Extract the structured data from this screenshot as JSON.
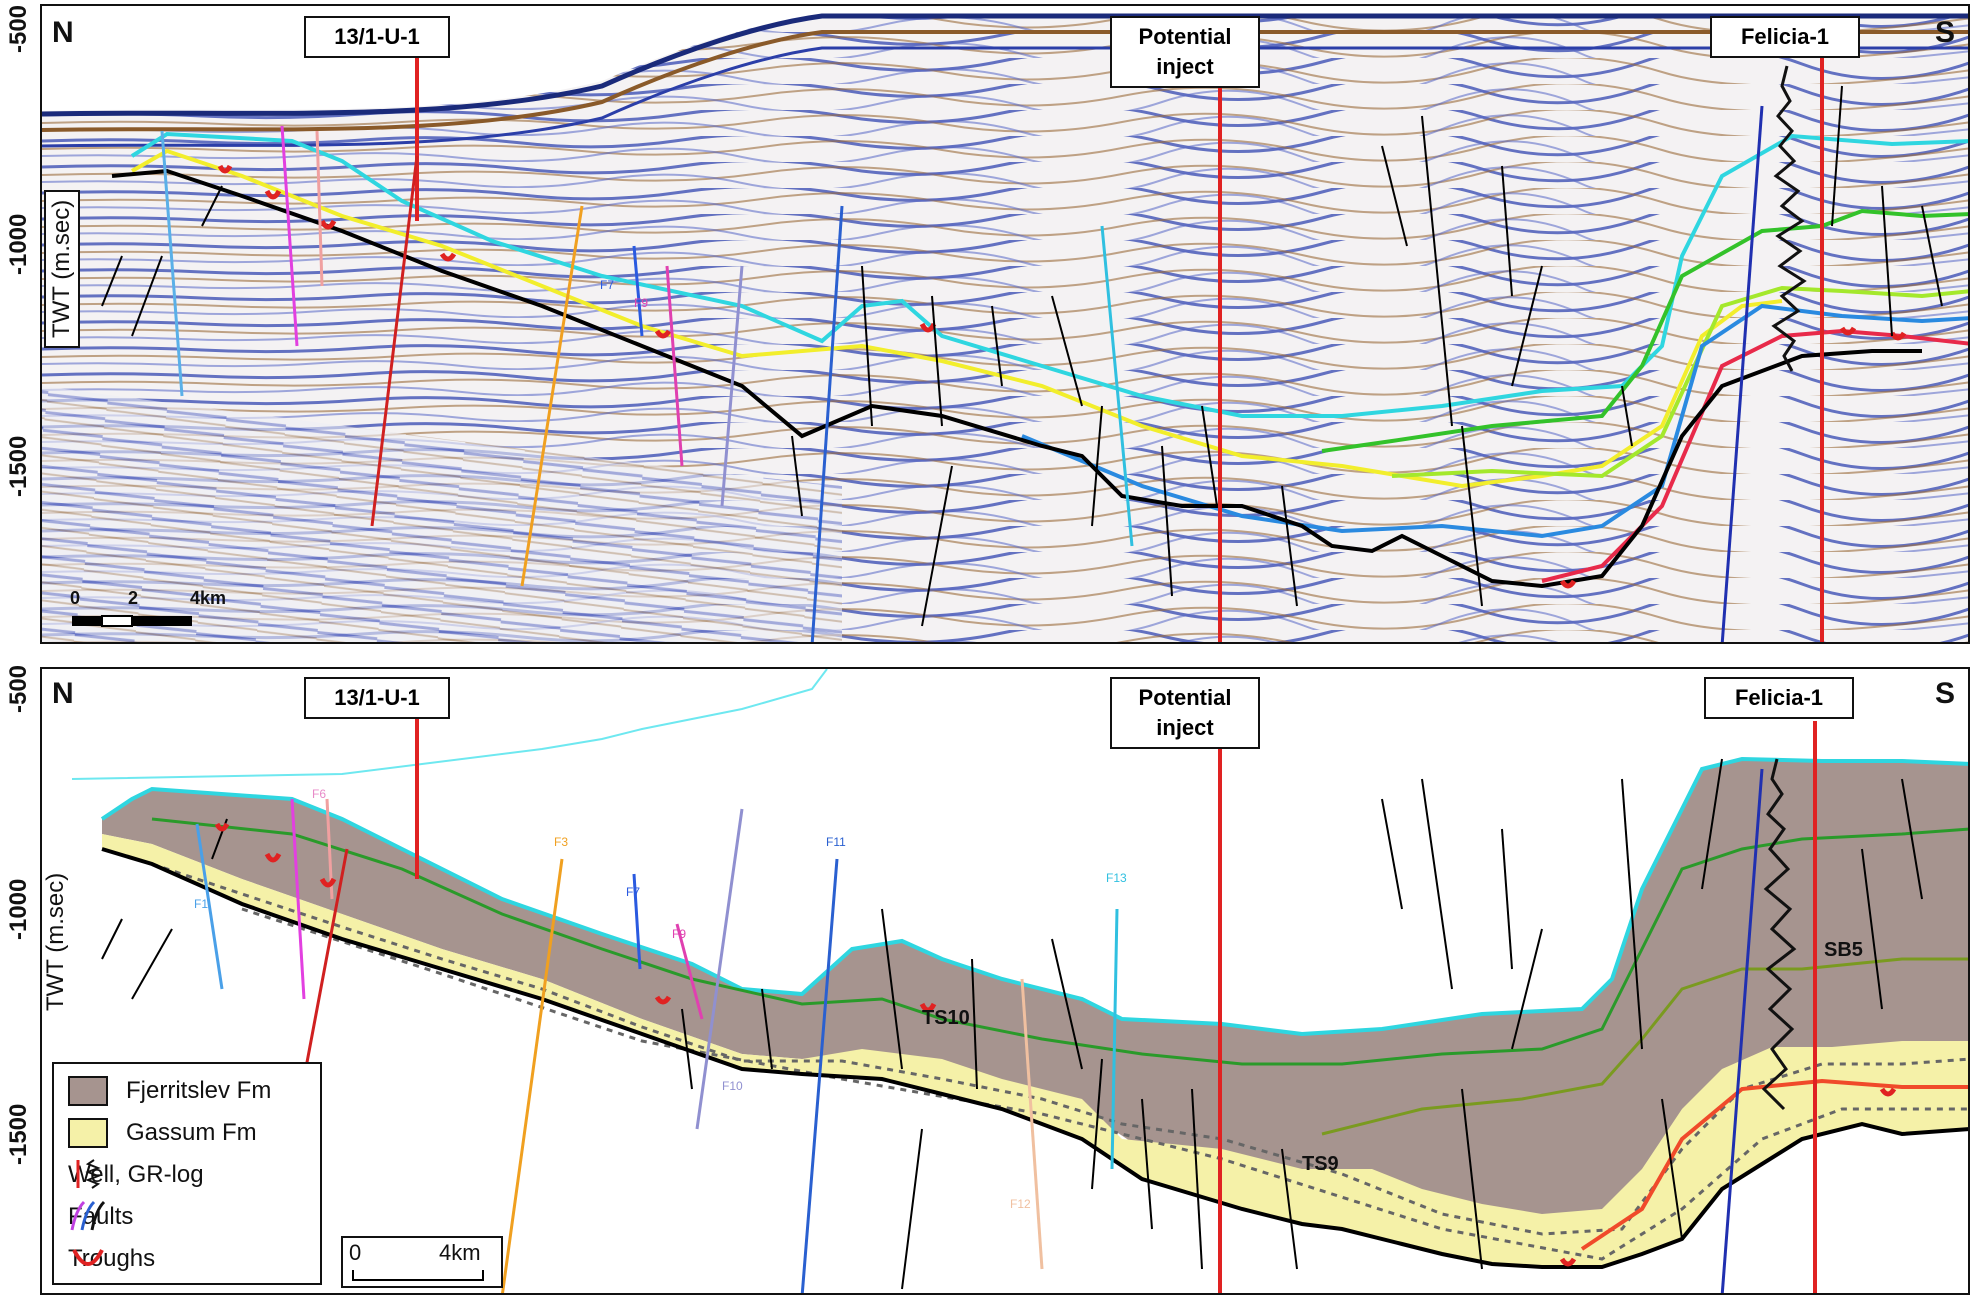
{
  "y_ticks": [
    "-500",
    "-1000",
    "-1500"
  ],
  "y_axis_label": "TWT (m.sec)",
  "direction": {
    "north": "N",
    "south": "S"
  },
  "wells": [
    {
      "name": "13/1-U-1"
    },
    {
      "name": "Potential inject"
    },
    {
      "name": "Felicia-1"
    }
  ],
  "fault_labels": [
    "F7",
    "F9",
    "F1",
    "F3",
    "F7",
    "F9",
    "F6",
    "F10",
    "F11",
    "F13",
    "F12"
  ],
  "horizon_labels": [
    "TS10",
    "TS9",
    "SB5"
  ],
  "legend": [
    {
      "label": "Fjerritslev Fm",
      "color": "#9a8a85"
    },
    {
      "label": "Gassum Fm",
      "color": "#f5f1a8"
    },
    {
      "label": "Well, GR-log",
      "icon": "well-gr-log-icon"
    },
    {
      "label": "Faults",
      "icon": "faults-icon"
    },
    {
      "label": "Troughs",
      "icon": "trough-icon"
    }
  ],
  "scale_top": {
    "ticks": [
      "0",
      "2",
      "4km"
    ]
  },
  "scale_bottom": {
    "ticks": [
      "0",
      "4km"
    ]
  },
  "colors": {
    "seismic_blue": "#2b3ea8",
    "seismic_brown": "#8a5a2a",
    "cyan_horizon": "#2fd6e0",
    "yellow_horizon": "#f2ee2c",
    "green_horizon": "#33c22a",
    "lime_horizon": "#a4e82c",
    "blue_horizon": "#2a8ae0",
    "red_horizon": "#e82a4a",
    "base_horizon": "#000000",
    "well_line": "#e02222",
    "fjerritslev": "#9a8a85",
    "gassum": "#f5f1a8"
  }
}
